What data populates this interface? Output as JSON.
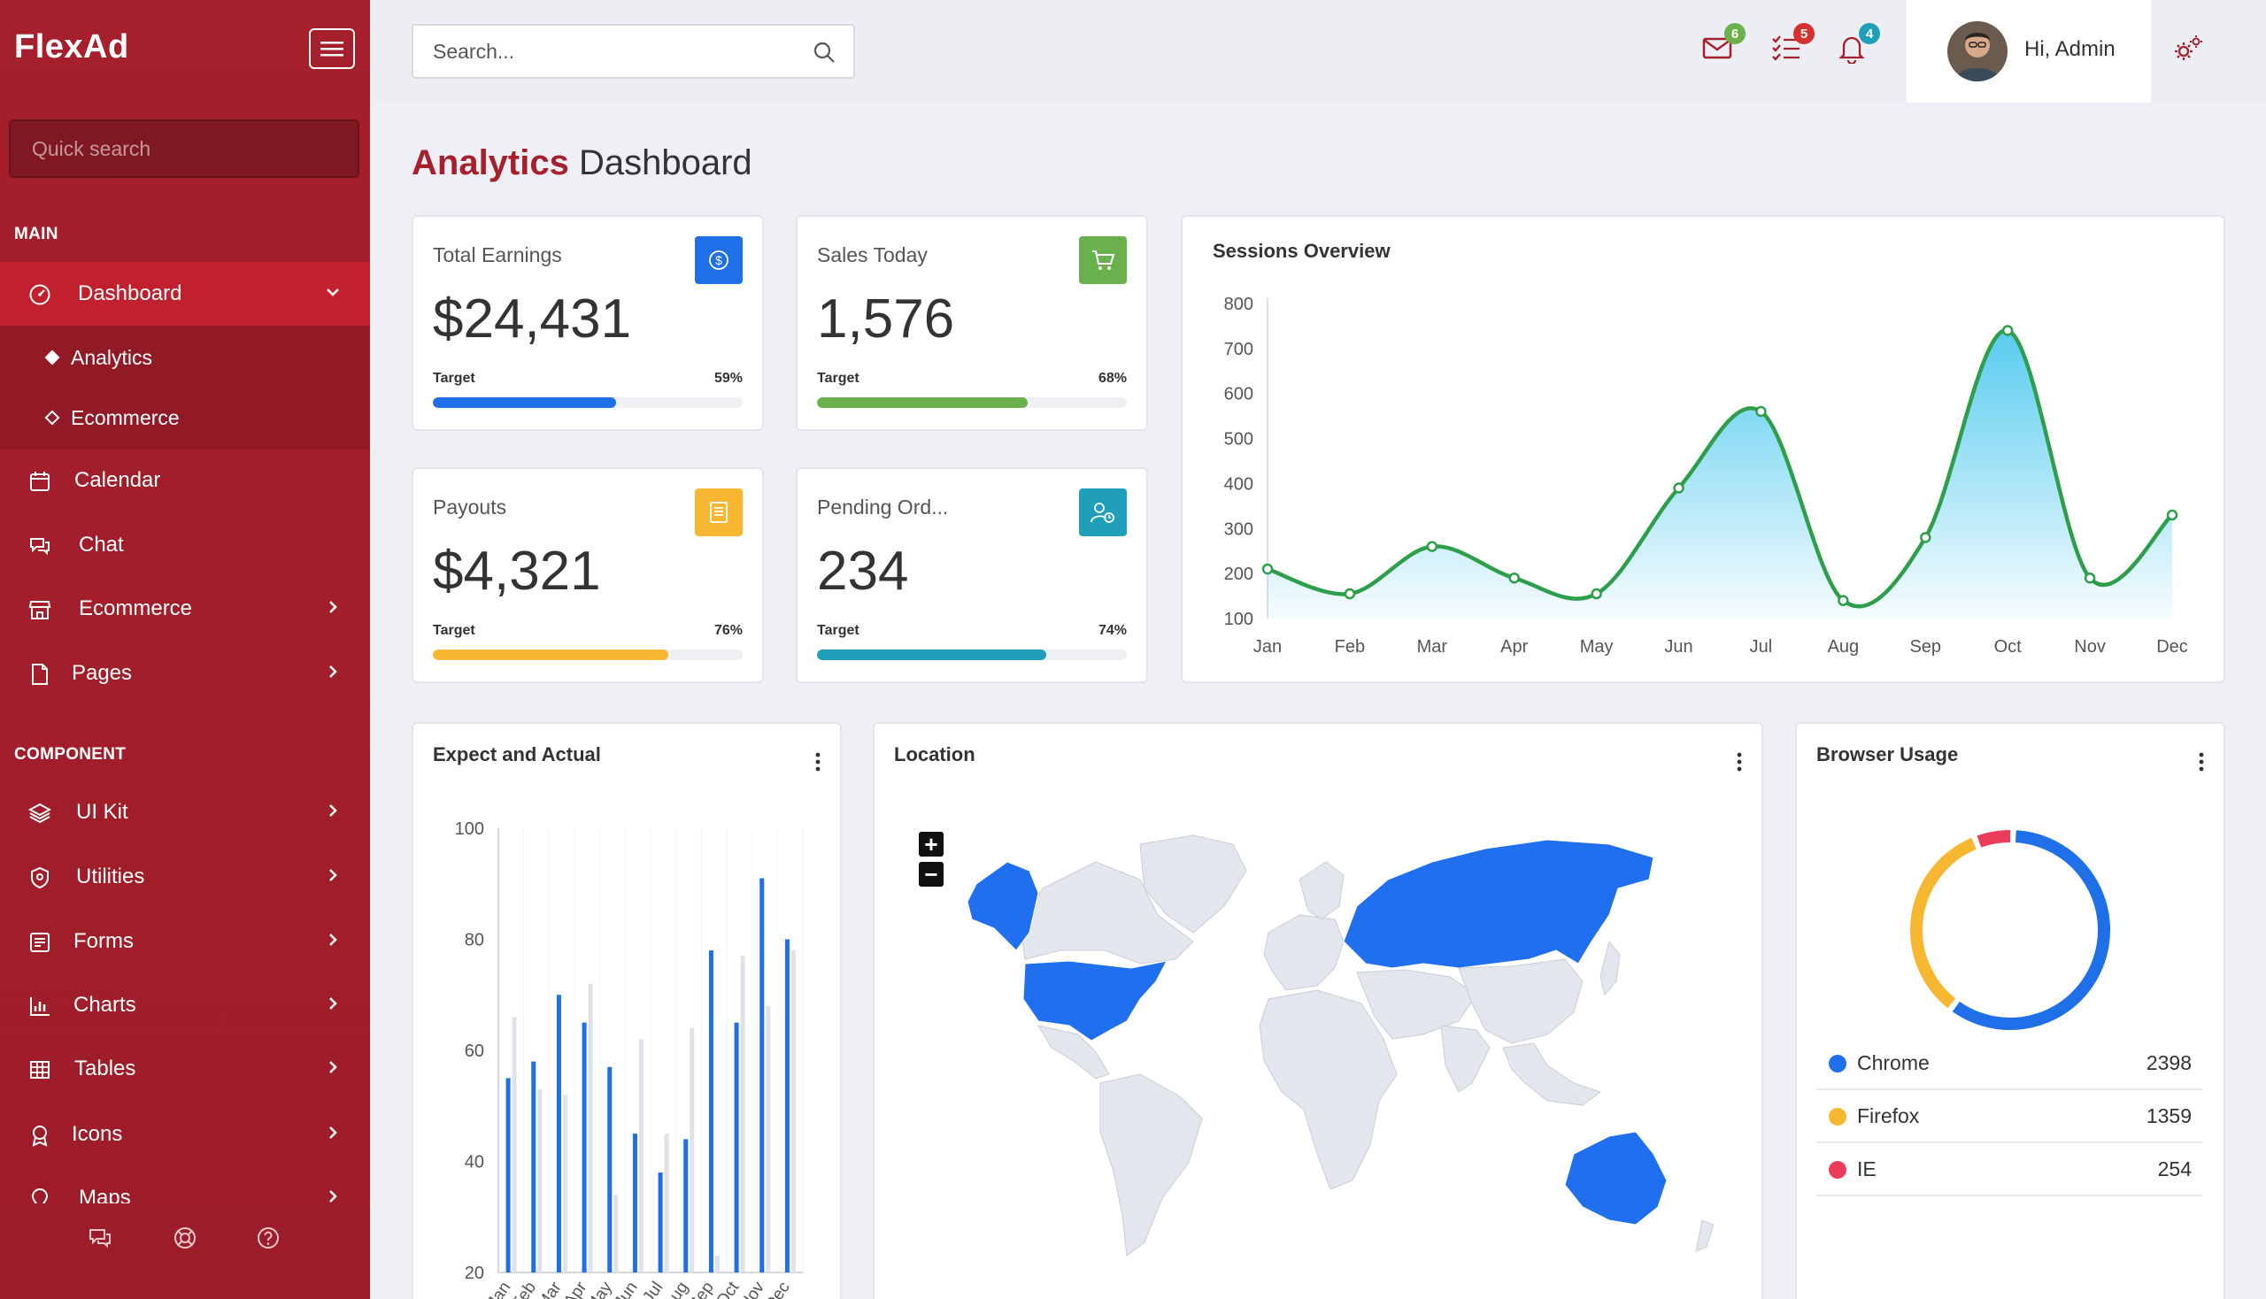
{
  "sidebar": {
    "brand": "FlexAd",
    "quick_search_placeholder": "Quick search",
    "section_main": "MAIN",
    "section_component": "COMPONENT",
    "dashboard": "Dashboard",
    "sub_items": [
      "Analytics",
      "Ecommerce"
    ],
    "main_items": [
      "Calendar",
      "Chat",
      "Ecommerce",
      "Pages"
    ],
    "component_items": [
      "UI Kit",
      "Utilities",
      "Forms",
      "Charts",
      "Tables",
      "Icons",
      "Maps"
    ]
  },
  "topbar": {
    "search_placeholder": "Search...",
    "mail_badge": "6",
    "tasks_badge": "5",
    "notif_badge": "4",
    "user_greeting": "Hi, Admin"
  },
  "page": {
    "title_accent": "Analytics",
    "title_rest": "Dashboard"
  },
  "stats": [
    {
      "title": "Total Earnings",
      "value": "$24,431",
      "target_label": "Target",
      "target_pct": "59%",
      "progress": 59,
      "color": "#1e6fe8",
      "icon": "dollar-icon"
    },
    {
      "title": "Sales Today",
      "value": "1,576",
      "target_label": "Target",
      "target_pct": "68%",
      "progress": 68,
      "color": "#6ab04c",
      "icon": "cart-icon"
    },
    {
      "title": "Payouts",
      "value": "$4,321",
      "target_label": "Target",
      "target_pct": "76%",
      "progress": 76,
      "color": "#f7b731",
      "icon": "document-icon"
    },
    {
      "title": "Pending Ord...",
      "value": "234",
      "target_label": "Target",
      "target_pct": "74%",
      "progress": 74,
      "color": "#20a0b8",
      "icon": "user-clock-icon"
    }
  ],
  "sessions": {
    "title": "Sessions Overview",
    "chart_data": {
      "type": "area",
      "title": "Sessions Overview",
      "categories": [
        "Jan",
        "Feb",
        "Mar",
        "Apr",
        "May",
        "Jun",
        "Jul",
        "Aug",
        "Sep",
        "Oct",
        "Nov",
        "Dec"
      ],
      "values": [
        210,
        155,
        260,
        190,
        155,
        390,
        560,
        140,
        280,
        740,
        190,
        330
      ],
      "ylim": [
        100,
        800
      ],
      "yticks": [
        100,
        200,
        300,
        400,
        500,
        600,
        700,
        800
      ],
      "line_color": "#2e9e4b",
      "fill_color": "#4fc9ef"
    }
  },
  "expect": {
    "title": "Expect and Actual",
    "chart_data": {
      "type": "bar",
      "categories": [
        "Jan",
        "Feb",
        "Mar",
        "Apr",
        "May",
        "Jun",
        "Jul",
        "Aug",
        "Sep",
        "Oct",
        "Nov",
        "Dec"
      ],
      "tick_labels": [
        "Jan",
        "Feb",
        "Mar",
        "Apr",
        "May",
        "Jun",
        "Jul",
        "Aug",
        "Sep",
        "Oct",
        "Nov",
        "Dec"
      ],
      "series": [
        {
          "values": [
            55,
            58,
            70,
            65,
            57,
            45,
            38,
            44,
            78,
            65,
            91,
            80
          ],
          "color": "#1e6fe8"
        },
        {
          "values": [
            66,
            53,
            52,
            72,
            34,
            62,
            45,
            64,
            23,
            77,
            68,
            78
          ],
          "color": "#dfe2e8"
        }
      ],
      "ylim": [
        20,
        100
      ],
      "yticks": [
        20,
        40,
        60,
        80,
        100
      ]
    }
  },
  "location": {
    "title": "Location",
    "zoom_in": "+",
    "zoom_out": "−"
  },
  "browser": {
    "title": "Browser Usage",
    "chart_data": {
      "type": "pie",
      "labels": [
        "Chrome",
        "Firefox",
        "IE"
      ],
      "values": [
        2398,
        1359,
        254
      ],
      "colors": [
        "#1e6fe8",
        "#f7b731",
        "#eb3b5a"
      ]
    },
    "rows": [
      {
        "name": "Chrome",
        "value": "2398",
        "color": "#1e6fe8"
      },
      {
        "name": "Firefox",
        "value": "1359",
        "color": "#f7b731"
      },
      {
        "name": "IE",
        "value": "254",
        "color": "#eb3b5a"
      }
    ]
  }
}
